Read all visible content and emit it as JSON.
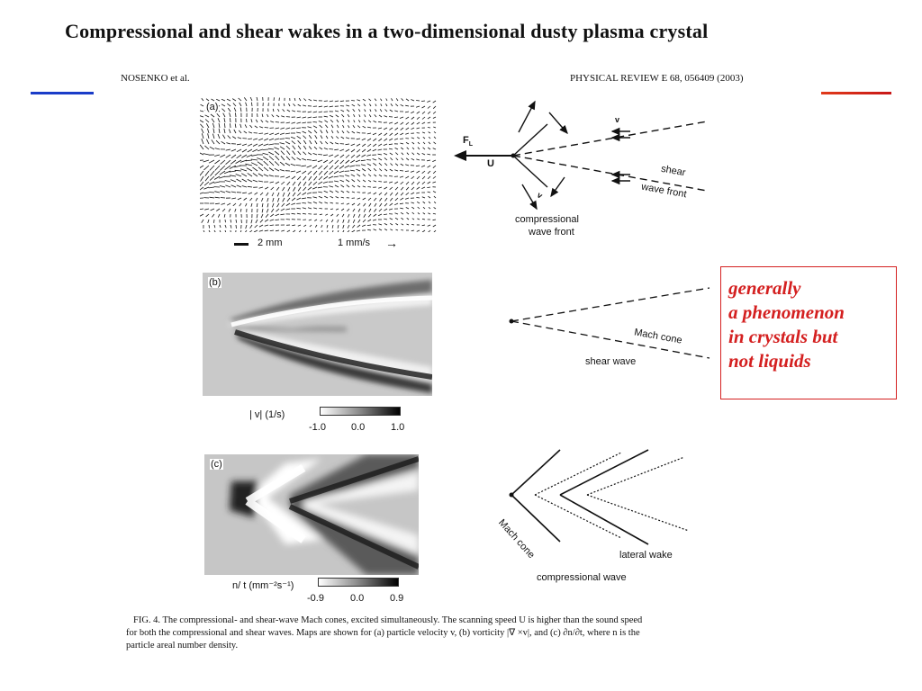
{
  "paper": {
    "title": "Compressional and shear wakes in a two-dimensional dusty plasma crystal",
    "authors": "NOSENKO et al.",
    "journal": "PHYSICAL REVIEW E 68, 056409 (2003)"
  },
  "colors": {
    "rule_left": "#1a3cc8",
    "rule_right": "#e03a1a",
    "callout": "#d42020"
  },
  "panel_a": {
    "label": "(a)",
    "scale_length": "2 mm",
    "scale_velocity": "1 mm/s",
    "arrow_glyph": "→"
  },
  "panel_b": {
    "label": "(b)",
    "colorbar_label": "|   v| (1/s)",
    "ticks": [
      "-1.0",
      "0.0",
      "1.0"
    ]
  },
  "panel_c": {
    "label": "(c)",
    "colorbar_label": "n/  t (mm⁻²s⁻¹)",
    "ticks": [
      "-0.9",
      "0.0",
      "0.9"
    ]
  },
  "diagram_a": {
    "force_label": "F",
    "force_sub": "L",
    "speed_label": "U",
    "v_label_top": "v",
    "v_label_bottom": "v",
    "shear_label": "shear",
    "shear_front_label": "wave front",
    "compressional_label": "compressional",
    "compressional_front_label": "wave front"
  },
  "diagram_b": {
    "mach_cone_label": "Mach cone",
    "shear_wave_label": "shear wave"
  },
  "diagram_c": {
    "mach_cone_label": "Mach cone",
    "lateral_wake_label": "lateral wake",
    "compressional_wave_label": "compressional wave"
  },
  "callout": {
    "lines": [
      "generally",
      "a phenomenon",
      "in crystals but",
      "not liquids"
    ]
  },
  "caption": {
    "lines": [
      "FIG. 4. The compressional- and shear-wave Mach cones, excited simultaneously. The scanning speed U is higher than the sound speed",
      "for both the compressional and shear waves. Maps are shown for (a) particle velocity v, (b) vorticity |∇ ×v|, and (c) ∂n/∂t, where n is the",
      "particle areal number density."
    ]
  }
}
